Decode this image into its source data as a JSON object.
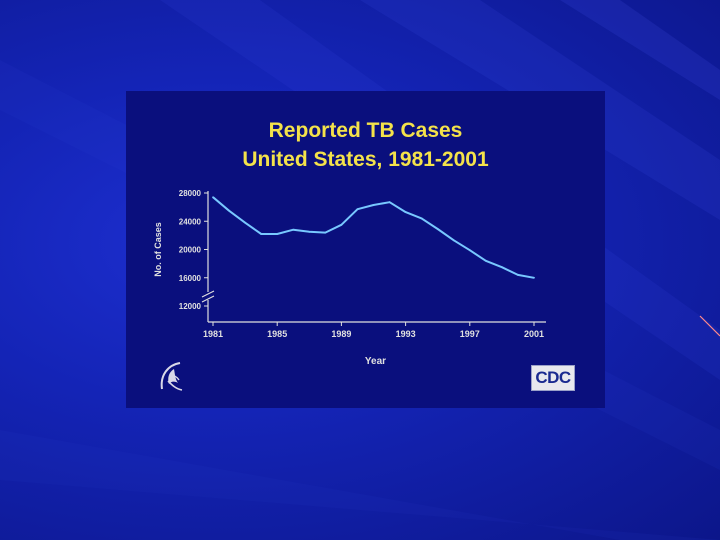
{
  "slide": {
    "title_line1": "Reported TB Cases",
    "title_line2": "United States, 1981-2001",
    "logo_left": "hhs-eagle-icon",
    "logo_right_text": "CDC"
  },
  "colors": {
    "background": "#1424b6",
    "panel": "#0a0f7d",
    "title": "#f4e24a",
    "axis_text": "#e0e0e0",
    "line": "#78c8ff"
  },
  "chart_data": {
    "type": "line",
    "title": "Reported TB Cases United States, 1981-2001",
    "xlabel": "Year",
    "ylabel": "No. of Cases",
    "xlim": [
      1981,
      2001
    ],
    "ylim": [
      12000,
      28000
    ],
    "y_axis_break": true,
    "x_ticks": [
      1981,
      1985,
      1989,
      1993,
      1997,
      2001
    ],
    "y_ticks": [
      12000,
      16000,
      20000,
      24000,
      28000
    ],
    "x": [
      1981,
      1982,
      1983,
      1984,
      1985,
      1986,
      1987,
      1988,
      1989,
      1990,
      1991,
      1992,
      1993,
      1994,
      1995,
      1996,
      1997,
      1998,
      1999,
      2000,
      2001
    ],
    "series": [
      {
        "values": [
          27400,
          25500,
          23800,
          22200,
          22200,
          22800,
          22500,
          22400,
          23500,
          25700,
          26300,
          26700,
          25300,
          24400,
          22900,
          21300,
          19900,
          18400,
          17500,
          16400,
          16000
        ]
      }
    ],
    "grid": false,
    "legend": "none"
  }
}
